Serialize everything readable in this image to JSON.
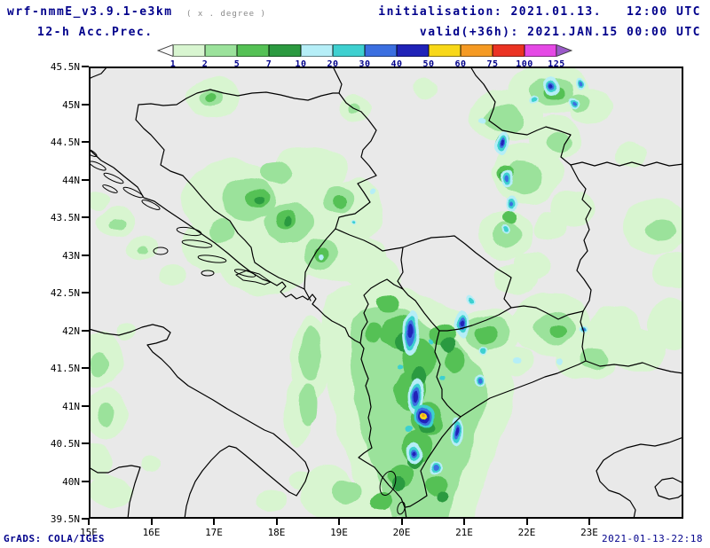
{
  "header": {
    "title": "wrf-nmmE_v3.9.1-e3km",
    "title_note": "( x . degree )",
    "initialisation": "initialisation: 2021.01.13.   12:00 UTC",
    "field": "12-h Acc.Prec.",
    "valid": "valid(+36h): 2021.JAN.15 00:00 UTC"
  },
  "legend": {
    "labels": [
      "1",
      "2",
      "5",
      "7",
      "10",
      "20",
      "30",
      "40",
      "50",
      "60",
      "75",
      "100",
      "125"
    ],
    "palette": [
      "#fbfbfb",
      "#d8f5d0",
      "#9be29b",
      "#55c155",
      "#2c9a40",
      "#b5eef7",
      "#3ed0d0",
      "#3b6fe0",
      "#2023b8",
      "#f8d818",
      "#f59a23",
      "#eb3323",
      "#e549e5",
      "#9b59c9"
    ]
  },
  "axes": {
    "lat_labels": [
      "45.5N",
      "45N",
      "44.5N",
      "44N",
      "43.5N",
      "43N",
      "42.5N",
      "42N",
      "41.5N",
      "41N",
      "40.5N",
      "40N",
      "39.5N"
    ],
    "lon_labels": [
      "15E",
      "16E",
      "17E",
      "18E",
      "19E",
      "20E",
      "21E",
      "22E",
      "23E"
    ]
  },
  "footer": {
    "left": "GrADS: COLA/IGES",
    "right": "2021-01-13-22:18"
  },
  "colors": {
    "header_text": "#00008b",
    "axis_text": "#000000",
    "border_lines": "#000000",
    "map_bg": "#e9e9e9"
  }
}
